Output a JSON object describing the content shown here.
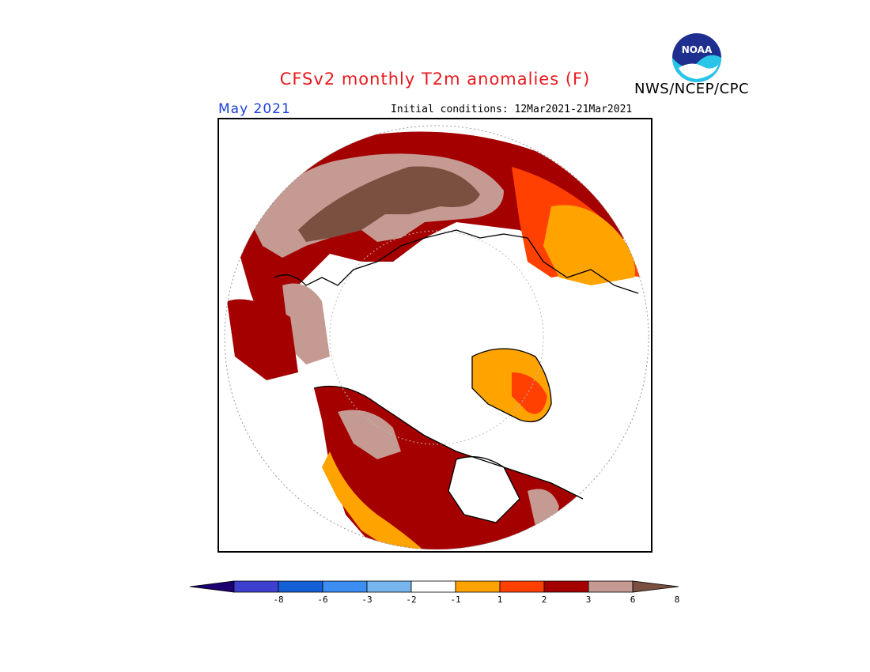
{
  "title": "CFSv2 monthly T2m anomalies (F)",
  "organization": "NWS/NCEP/CPC",
  "logo_text": "NOAA",
  "month": "May 2021",
  "initial_conditions": "Initial conditions: 12Mar2021-21Mar2021",
  "colors": {
    "title": "#e8191c",
    "month": "#1a3fd8"
  },
  "legend": {
    "colors": [
      "#1c0072",
      "#3f3fcf",
      "#1560d6",
      "#3c8ef2",
      "#78b6f0",
      "#ffffff",
      "#ffa300",
      "#ff4000",
      "#a50000",
      "#c49a92",
      "#7a5040"
    ],
    "labels": [
      "-8",
      "-6",
      "-3",
      "-2",
      "-1",
      "1",
      "2",
      "3",
      "6",
      "8"
    ]
  }
}
